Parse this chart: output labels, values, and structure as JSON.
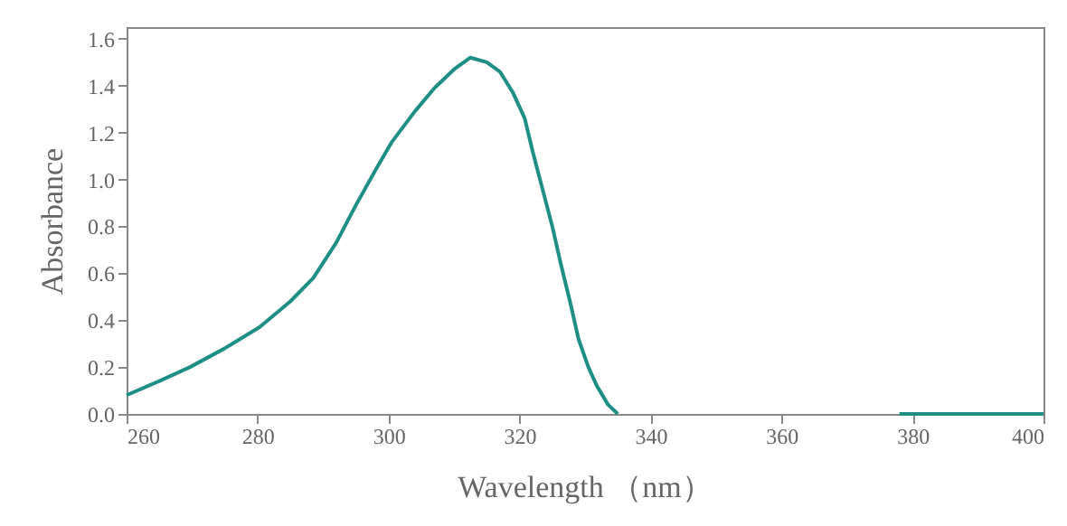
{
  "chart_data": {
    "type": "line",
    "xlabel": "Wavelength （nm）",
    "ylabel": "Absorbance",
    "x": [
      260,
      265,
      269.7,
      275,
      280.3,
      285,
      288.5,
      292,
      295,
      298,
      300.5,
      304,
      307,
      310,
      312.5,
      315,
      317,
      319,
      320.8,
      322,
      323.5,
      325,
      326.3,
      327.7,
      329,
      330.5,
      331.8,
      333.5,
      335,
      350,
      378,
      390,
      400
    ],
    "series": [
      {
        "color": "#1f8f85",
        "values": [
          0.08,
          0.14,
          0.2,
          0.28,
          0.37,
          0.48,
          0.58,
          0.73,
          0.89,
          1.04,
          1.16,
          1.29,
          1.39,
          1.47,
          1.52,
          1.5,
          1.46,
          1.37,
          1.26,
          1.12,
          0.96,
          0.8,
          0.64,
          0.48,
          0.32,
          0.2,
          0.12,
          0.04,
          0,
          null,
          0,
          0,
          0
        ]
      }
    ],
    "xlim": [
      260,
      400
    ],
    "xticks": [
      260,
      280,
      300,
      320,
      340,
      360,
      380,
      400
    ],
    "ylim": [
      0,
      1.65
    ],
    "yticks": [
      {
        "value": 0,
        "label": "0.0"
      },
      0.2,
      0.4,
      0.6,
      0.8,
      {
        "value": 1,
        "label": "1.0"
      },
      1.2,
      1.4,
      1.6
    ],
    "grid": false,
    "marker": "none",
    "line_style": "solid"
  }
}
